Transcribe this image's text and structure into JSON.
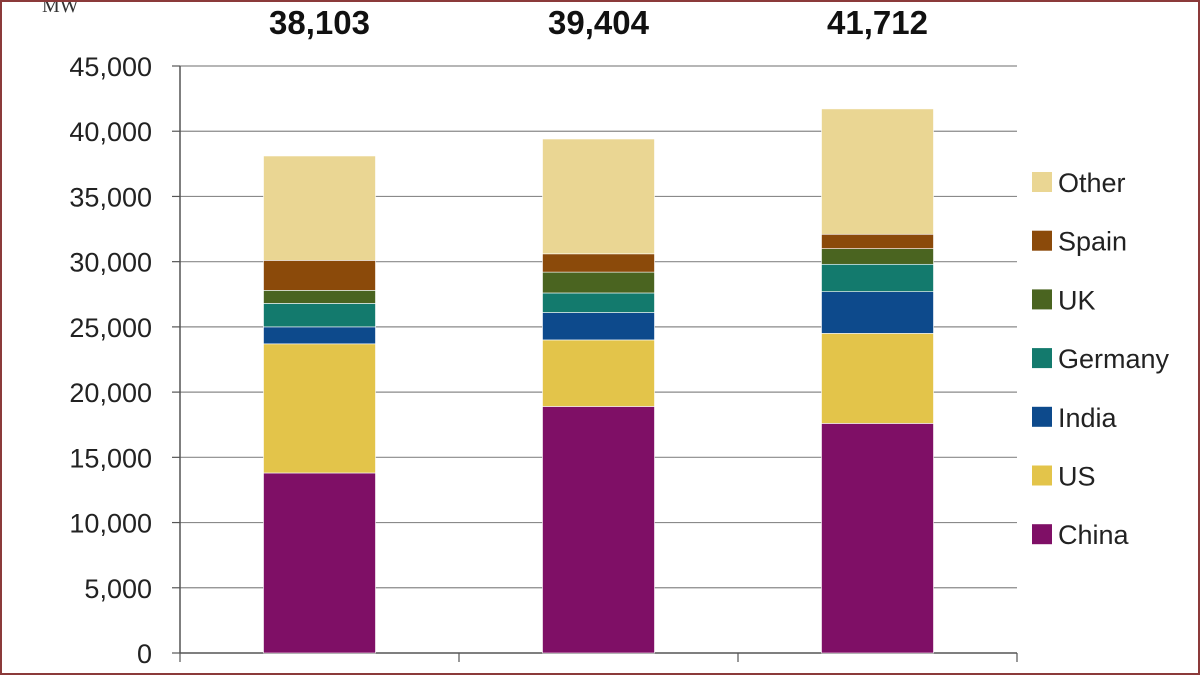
{
  "chart_data": {
    "type": "bar",
    "stacked": true,
    "ylabel": "MW",
    "ylim": [
      0,
      45000
    ],
    "yticks": [
      0,
      5000,
      10000,
      15000,
      20000,
      25000,
      30000,
      35000,
      40000,
      45000
    ],
    "ytick_labels": [
      "0",
      "5,000",
      "10,000",
      "15,000",
      "20,000",
      "25,000",
      "30,000",
      "35,000",
      "40,000",
      "45,000"
    ],
    "categories": [
      "",
      "",
      ""
    ],
    "totals": [
      "38,103",
      "39,404",
      "41,712"
    ],
    "grid": true,
    "legend_position": "right",
    "series": [
      {
        "name": "China",
        "color": "#7f0f66",
        "values": [
          13800,
          18900,
          17600
        ]
      },
      {
        "name": "US",
        "color": "#e3c44a",
        "values": [
          9900,
          5100,
          6900
        ]
      },
      {
        "name": "India",
        "color": "#0d4a8c",
        "values": [
          1300,
          2100,
          3200
        ]
      },
      {
        "name": "Germany",
        "color": "#137a6d",
        "values": [
          1800,
          1500,
          2100
        ]
      },
      {
        "name": "UK",
        "color": "#4a6420",
        "values": [
          1000,
          1600,
          1200
        ]
      },
      {
        "name": "Spain",
        "color": "#8b4a0a",
        "values": [
          2300,
          1400,
          1100
        ]
      },
      {
        "name": "Other",
        "color": "#ead693",
        "values": [
          8003,
          8804,
          9612
        ]
      }
    ]
  }
}
